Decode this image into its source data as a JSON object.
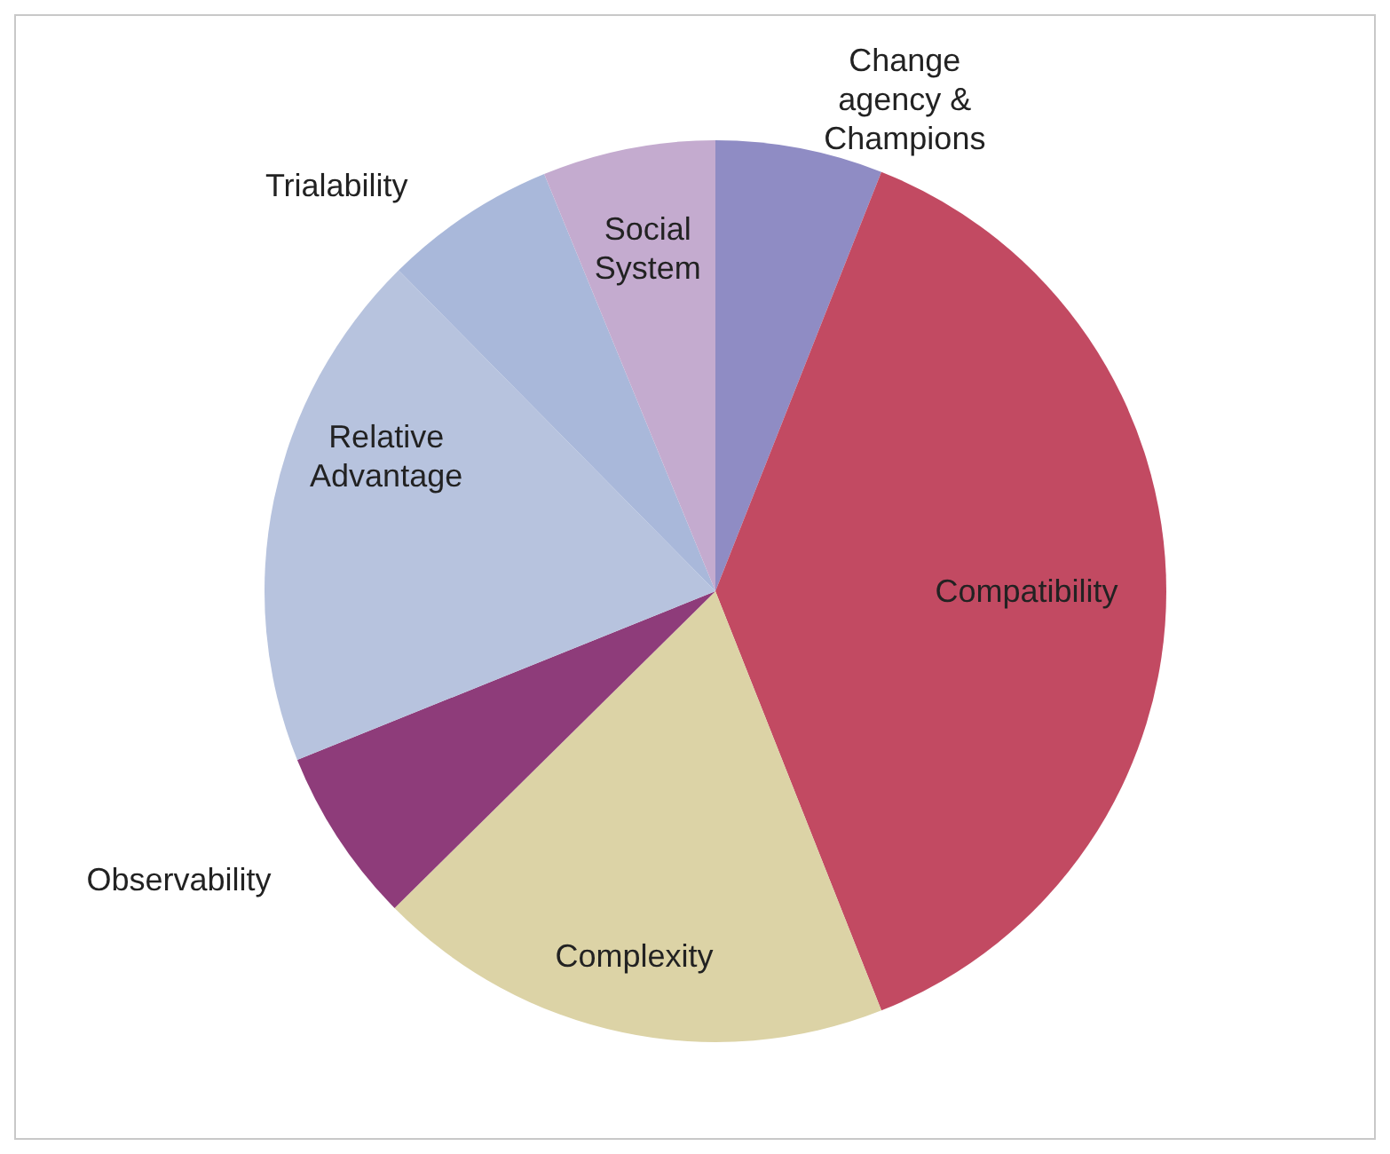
{
  "chart_data": {
    "type": "pie",
    "categories": [
      "Change agency & Champions",
      "Compatibility",
      "Complexity",
      "Observability",
      "Relative Advantage",
      "Trialability",
      "Social System"
    ],
    "values": [
      6.0,
      38.0,
      18.6,
      6.3,
      18.7,
      6.2,
      6.2
    ],
    "colors": [
      "#8f8cc4",
      "#c24a62",
      "#dcd3a6",
      "#8e3c7a",
      "#b7c3de",
      "#a9b8da",
      "#c4abcf"
    ]
  }
}
